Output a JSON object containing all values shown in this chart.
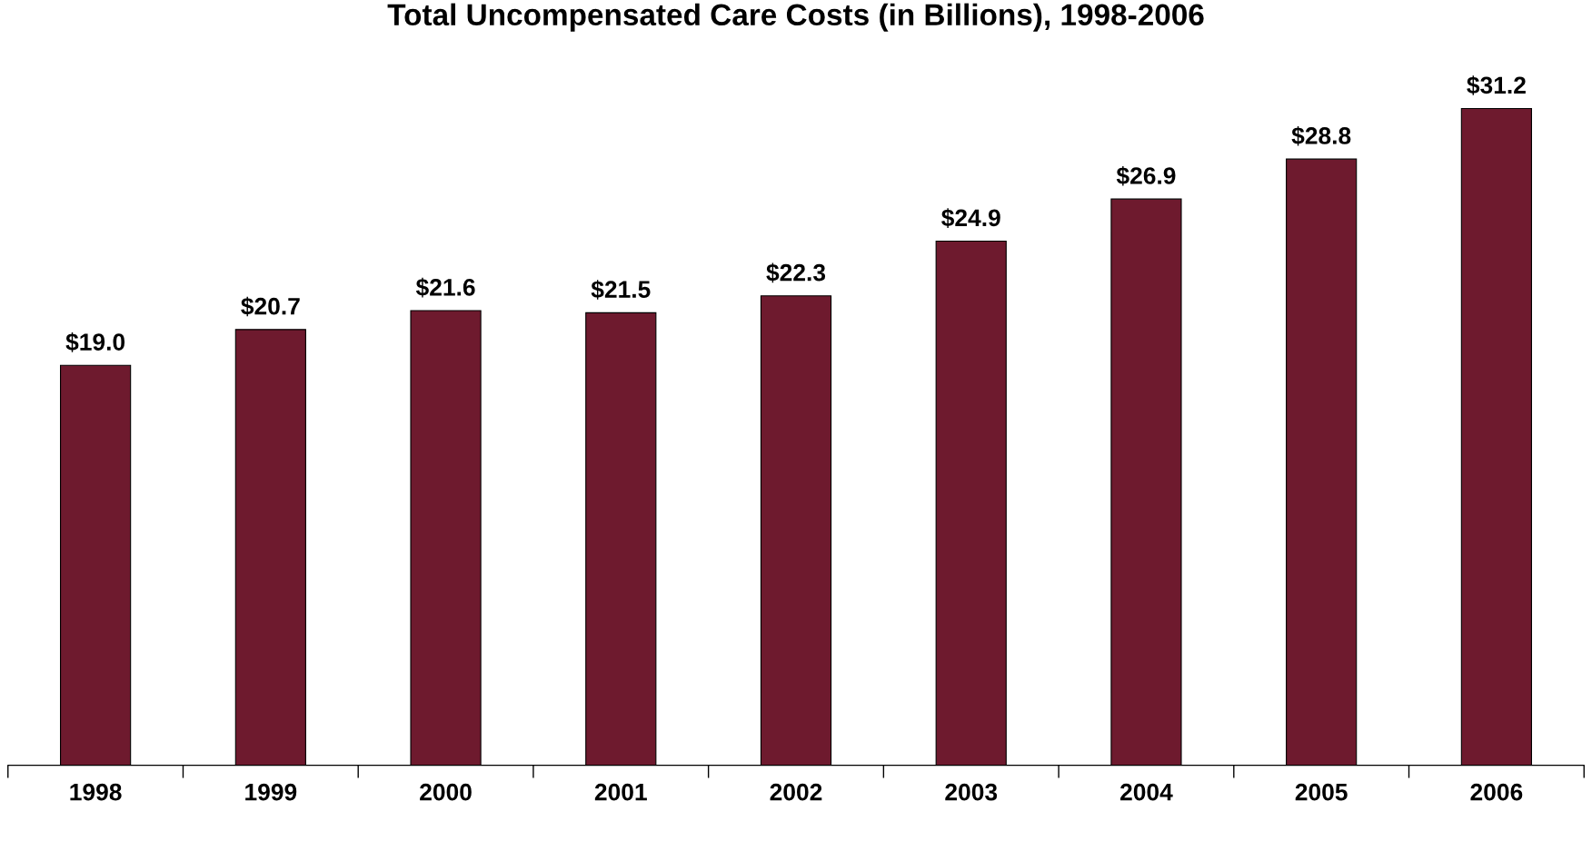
{
  "chart_data": {
    "type": "bar",
    "title": "Total Uncompensated Care Costs (in Billions), 1998-2006",
    "categories": [
      "1998",
      "1999",
      "2000",
      "2001",
      "2002",
      "2003",
      "2004",
      "2005",
      "2006"
    ],
    "values": [
      19.0,
      20.7,
      21.6,
      21.5,
      22.3,
      24.9,
      26.9,
      28.8,
      31.2
    ],
    "value_labels": [
      "$19.0",
      "$20.7",
      "$21.6",
      "$21.5",
      "$22.3",
      "$24.9",
      "$26.9",
      "$28.8",
      "$31.2"
    ],
    "color": "#6e1a2e",
    "grid": false
  }
}
